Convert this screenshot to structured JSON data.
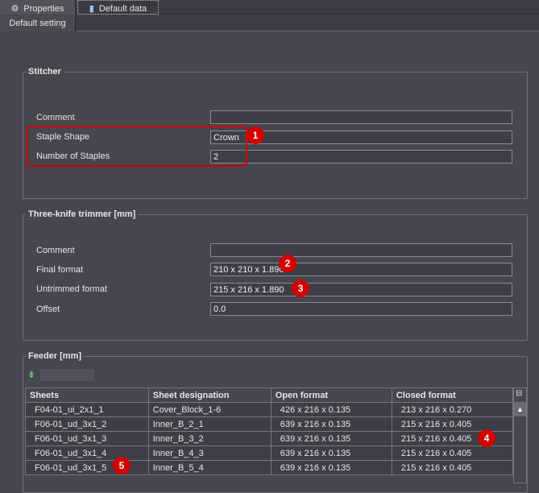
{
  "tabs": [
    {
      "label": "Properties",
      "icon": "properties-icon"
    },
    {
      "label": "Default data",
      "icon": "book-icon",
      "selected": true
    }
  ],
  "subtab": "Default setting",
  "stitcher": {
    "title": "Stitcher",
    "rows": [
      {
        "label": "Comment",
        "value": ""
      },
      {
        "label": "Staple Shape",
        "value": "Crown"
      },
      {
        "label": "Number of Staples",
        "value": "2"
      }
    ]
  },
  "trimmer": {
    "title": "Three-knife trimmer [mm]",
    "rows": [
      {
        "label": "Comment",
        "value": ""
      },
      {
        "label": "Final format",
        "value": "210 x 210 x 1.890"
      },
      {
        "label": "Untrimmed format",
        "value": "215 x 216 x 1.890"
      },
      {
        "label": "Offset",
        "value": "0.0"
      }
    ]
  },
  "feeder": {
    "title": "Feeder [mm]",
    "columns": [
      "Sheets",
      "Sheet designation",
      "Open format",
      "Closed format"
    ],
    "rows": [
      [
        "F04-01_ui_2x1_1",
        "Cover_Block_1-6",
        "426 x 216 x 0.135",
        "213 x 216 x 0.270"
      ],
      [
        "F06-01_ud_3x1_2",
        "Inner_B_2_1",
        "639 x 216 x 0.135",
        "215 x 216 x 0.405"
      ],
      [
        "F06-01_ud_3x1_3",
        "Inner_B_3_2",
        "639 x 216 x 0.135",
        "215 x 216 x 0.405"
      ],
      [
        "F06-01_ud_3x1_4",
        "Inner_B_4_3",
        "639 x 216 x 0.135",
        "215 x 216 x 0.405"
      ],
      [
        "F06-01_ud_3x1_5",
        "Inner_B_5_4",
        "639 x 216 x 0.135",
        "215 x 216 x 0.405"
      ]
    ]
  },
  "badges": [
    "1",
    "2",
    "3",
    "4",
    "5"
  ],
  "colors": {
    "background": "#46464e",
    "callout": "#d40000"
  }
}
